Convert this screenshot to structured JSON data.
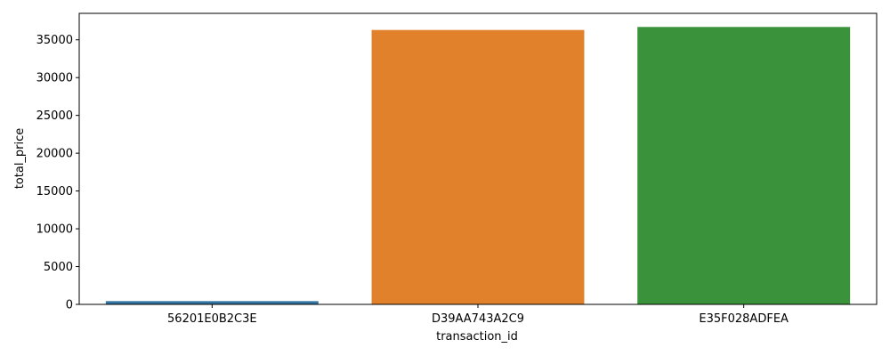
{
  "chart_data": {
    "type": "bar",
    "title": "",
    "xlabel": "transaction_id",
    "ylabel": "total_price",
    "categories": [
      "56201E0B2C3E",
      "D39AA743A2C9",
      "E35F028ADFEA"
    ],
    "values": [
      430,
      36300,
      36700
    ],
    "colors": [
      "#3274a1",
      "#e1812c",
      "#3a923a"
    ],
    "ylim": [
      0,
      38500
    ],
    "yticks": [
      0,
      5000,
      10000,
      15000,
      20000,
      25000,
      30000,
      35000
    ],
    "ytick_labels": [
      "0",
      "5000",
      "10000",
      "15000",
      "20000",
      "25000",
      "30000",
      "35000"
    ],
    "grid": false,
    "legend": "none"
  }
}
